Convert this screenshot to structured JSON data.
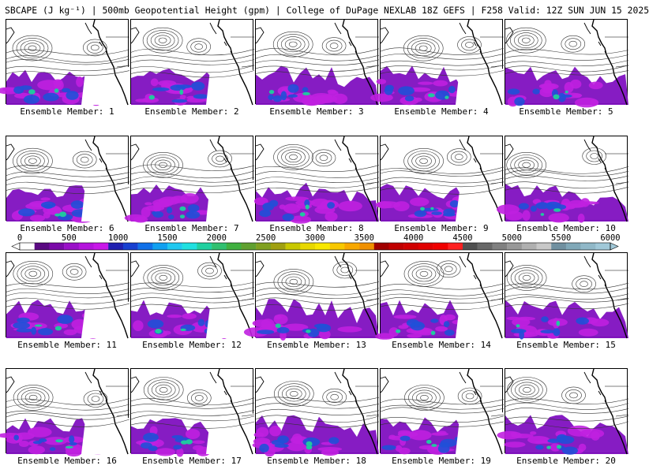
{
  "title": "SBCAPE (J kg⁻¹) | 500mb Geopotential Height (gpm) | College of DuPage NEXLAB 18Z GEFS | F258 Valid: 12Z SUN JUN 15 2025",
  "members": [
    "Ensemble Member: 1",
    "Ensemble Member: 2",
    "Ensemble Member: 3",
    "Ensemble Member: 4",
    "Ensemble Member: 5",
    "Ensemble Member: 6",
    "Ensemble Member: 7",
    "Ensemble Member: 8",
    "Ensemble Member: 9",
    "Ensemble Member: 10",
    "Ensemble Member: 11",
    "Ensemble Member: 12",
    "Ensemble Member: 13",
    "Ensemble Member: 14",
    "Ensemble Member: 15",
    "Ensemble Member: 16",
    "Ensemble Member: 17",
    "Ensemble Member: 18",
    "Ensemble Member: 19",
    "Ensemble Member: 20"
  ],
  "colorbar": {
    "labels": [
      "0",
      "500",
      "1000",
      "1500",
      "2000",
      "2500",
      "3000",
      "3500",
      "4000",
      "4500",
      "5000",
      "5500",
      "6000"
    ],
    "min": 0,
    "max": 6000,
    "colors": [
      "#ffffff",
      "#5a0a82",
      "#7a0aa8",
      "#9a10c8",
      "#b414dc",
      "#c818e8",
      "#2020b0",
      "#1840d0",
      "#1070e8",
      "#10a0f0",
      "#20c8f0",
      "#20e0e0",
      "#20d0a0",
      "#30c070",
      "#40b040",
      "#60a030",
      "#80a020",
      "#a0a010",
      "#c8c800",
      "#e8d800",
      "#f8e800",
      "#f8c800",
      "#f8a800",
      "#f09000",
      "#a00000",
      "#c00000",
      "#d00000",
      "#e00000",
      "#f00000",
      "#ff2020",
      "#505050",
      "#686868",
      "#808080",
      "#989898",
      "#b0b0b0",
      "#c8c8c8",
      "#7090a0",
      "#80a8b8",
      "#90b8c8",
      "#a0c8d8"
    ]
  },
  "legend": {
    "cape_low": "#8010c0",
    "cape_mid": "#c020e0",
    "cape_high": "#2050d8",
    "cape_peak": "#20c8a0"
  }
}
